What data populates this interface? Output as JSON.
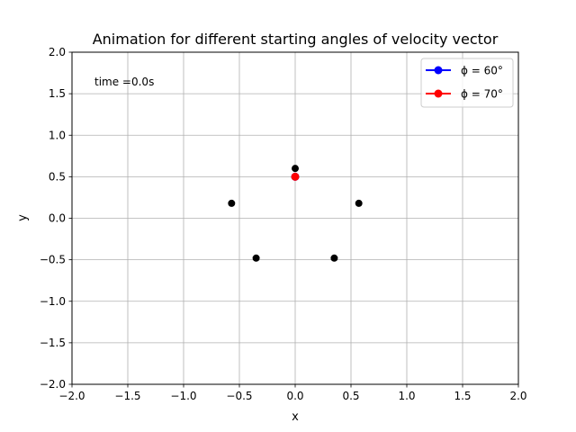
{
  "chart_data": {
    "type": "scatter",
    "title": "Animation for different starting angles of velocity vector",
    "xlabel": "x",
    "ylabel": "y",
    "xlim": [
      -2.0,
      2.0
    ],
    "ylim": [
      -2.0,
      2.0
    ],
    "xticks": [
      -2.0,
      -1.5,
      -1.0,
      -0.5,
      0.0,
      0.5,
      1.0,
      1.5,
      2.0
    ],
    "yticks": [
      -2.0,
      -1.5,
      -1.0,
      -0.5,
      0.0,
      0.5,
      1.0,
      1.5,
      2.0
    ],
    "xtick_labels": [
      "−2.0",
      "−1.5",
      "−1.0",
      "−0.5",
      "0.0",
      "0.5",
      "1.0",
      "1.5",
      "2.0"
    ],
    "ytick_labels": [
      "−2.0",
      "−1.5",
      "−1.0",
      "−0.5",
      "0.0",
      "0.5",
      "1.0",
      "1.5",
      "2.0"
    ],
    "grid": true,
    "annotation": "time =0.0s",
    "legend": {
      "placement": "top-right",
      "entries": [
        {
          "label": "ϕ = 60°",
          "color": "#0000ff"
        },
        {
          "label": "ϕ = 70°",
          "color": "#ff0000"
        }
      ]
    },
    "fixed_points": {
      "color": "#000000",
      "x": [
        0.0,
        0.57,
        0.35,
        -0.35,
        -0.57
      ],
      "y": [
        0.6,
        0.18,
        -0.48,
        -0.48,
        0.18
      ]
    },
    "series": [
      {
        "name": "ϕ = 60°",
        "color": "#0000ff",
        "x": [
          0.0
        ],
        "y": [
          0.5
        ]
      },
      {
        "name": "ϕ = 70°",
        "color": "#ff0000",
        "x": [
          0.0
        ],
        "y": [
          0.5
        ]
      }
    ]
  }
}
